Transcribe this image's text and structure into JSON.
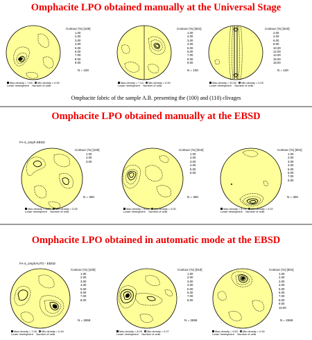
{
  "section1": {
    "title": "Omphacite LPO obtained manually at the Universal Stage",
    "caption": "Omphacite fabric of the sample A.B. presenting the (100) and (110) clivages",
    "plots": [
      {
        "legend_title": "Contour (%)  [100]",
        "levels": [
          "1.00",
          "2.00",
          "3.00",
          "4.00",
          "5.00",
          "6.00",
          "7.00",
          "8.00",
          "9.00"
        ],
        "n": "N = 100",
        "max": "Max.density = 7.69",
        "min": "Min.density = 0.00",
        "proj": "Lower hemisphere",
        "grid": "Number of cells"
      },
      {
        "legend_title": "Contour (%)  [001]",
        "levels": [
          "1.00",
          "2.00",
          "3.00",
          "4.00",
          "5.00",
          "6.00",
          "7.00",
          "8.00",
          "9.00"
        ],
        "n": "N = 100",
        "max": "Max.density = 7.14",
        "min": "Min.density = 0.00",
        "proj": "Lower hemisphere",
        "grid": "Number of cells"
      },
      {
        "legend_title": "Contour (%)  [010]",
        "levels": [
          "2.00",
          "4.00",
          "6.00",
          "8.00",
          "10.00",
          "12.00",
          "14.00",
          "16.00",
          "18.00"
        ],
        "n": "N = 100",
        "max": "Max.density = 20.00",
        "min": "Min.density = 0.00",
        "proj": "Lower hemisphere",
        "grid": "Number of cells"
      }
    ]
  },
  "section2": {
    "title": "Omphacite LPO obtained manually at the EBSD",
    "sample_label": "FA-4_omph EBSD",
    "plots": [
      {
        "legend_title": "Contour (%)  [100]",
        "levels": [
          "1.00",
          "2.00",
          "3.00"
        ],
        "n": "N = 300",
        "max": "Max.density = 3.50",
        "min": "Min.density = 0.05",
        "proj": "Lower hemisphere",
        "grid": "Number of cells"
      },
      {
        "legend_title": "Contour (%)  [010]",
        "levels": [
          "1.00",
          "2.00",
          "3.00",
          "4.00",
          "5.00",
          "6.00"
        ],
        "n": "N = 300",
        "max": "Max.density = 6.04",
        "min": "Min.density = 0.00",
        "proj": "Lower hemisphere",
        "grid": "Number of cells"
      },
      {
        "legend_title": "Contour (%)  [001]",
        "levels": [
          "1.00",
          "2.00",
          "3.00",
          "4.00",
          "5.00",
          "6.00",
          "7.00",
          "8.00"
        ],
        "n": "N = 300",
        "max": "Max.density = 8.70",
        "min": "Min.density = 0.02",
        "proj": "Lower hemisphere",
        "grid": "Number of cells"
      }
    ]
  },
  "section3": {
    "title": "Omphacite LPO obtained in automatic mode at the EBSD",
    "sample_label": "FA-4_omphAUTO - EBSD",
    "plots": [
      {
        "legend_title": "Contour (%)  [100]",
        "levels": [
          "1.00",
          "2.00",
          "3.00",
          "4.00",
          "5.00",
          "6.00",
          "7.00",
          "8.00"
        ],
        "n": "N = 2659",
        "max": "Max.density = 7.06",
        "min": "Min.density = 0.49",
        "proj": "Lower hemisphere",
        "grid": "Number of cells"
      },
      {
        "legend_title": "Contour (%)  [010]",
        "levels": [
          "1.00",
          "2.00",
          "3.00",
          "4.00",
          "5.00",
          "6.00",
          "7.00",
          "8.00"
        ],
        "n": "N = 2659",
        "max": "Max.density = 8.09",
        "min": "Min.density = 0.27",
        "proj": "Lower hemisphere",
        "grid": "Number of cells"
      },
      {
        "legend_title": "Contour (%)  [001]",
        "levels": [
          "1.00",
          "2.00",
          "3.00",
          "4.00",
          "5.00",
          "6.00",
          "7.00",
          "8.00",
          "9.00",
          "10.00"
        ],
        "n": "N = 2659",
        "max": "Max.density = 9.63",
        "min": "Min.density = 0.30",
        "proj": "Lower hemisphere",
        "grid": "Number of cells"
      }
    ]
  },
  "colors": {
    "heading": "#ee0000",
    "net_fill": "#ffff99",
    "contour": "#000000",
    "divider": "#9a9a9a"
  }
}
